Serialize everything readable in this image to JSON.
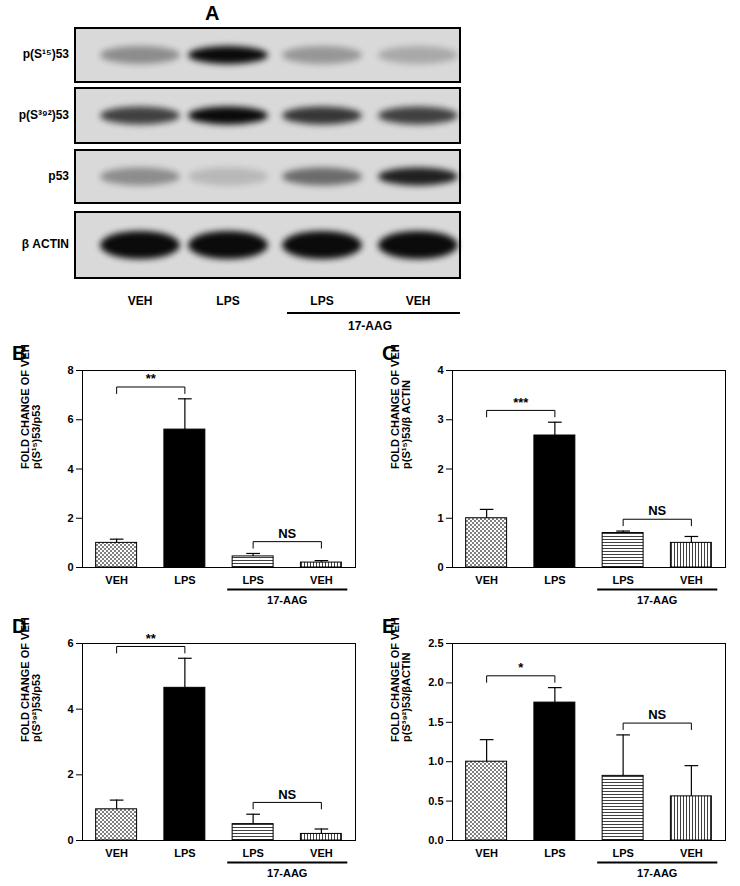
{
  "blot": {
    "title": "A",
    "rows": [
      {
        "label": "p(S¹⁵)53",
        "bands": [
          0.35,
          0.95,
          0.3,
          0.22
        ]
      },
      {
        "label": "p(S³⁹²)53",
        "bands": [
          0.7,
          0.95,
          0.75,
          0.7
        ]
      },
      {
        "label": "p53",
        "bands": [
          0.35,
          0.15,
          0.5,
          0.85
        ]
      },
      {
        "label": "β ACTIN",
        "bands": [
          0.95,
          0.95,
          0.95,
          0.95
        ]
      }
    ],
    "lanes": [
      "VEH",
      "LPS",
      "LPS",
      "VEH"
    ],
    "group": {
      "text": "17-AAG",
      "from": 2,
      "to": 3
    }
  },
  "chart_data": [
    {
      "type": "bar",
      "title": "B",
      "ylabel": "FOLD CHANGE OF VEH\np(S¹⁵)53/p53",
      "categories": [
        "VEH",
        "LPS",
        "LPS",
        "VEH"
      ],
      "values": [
        1.0,
        5.6,
        0.45,
        0.2
      ],
      "errors": [
        0.15,
        1.25,
        0.12,
        0.08
      ],
      "colors": [
        "#808080",
        "#000000",
        "#404040",
        "#404040"
      ],
      "ylim": [
        0,
        8
      ],
      "yticks": [
        0,
        2,
        4,
        6,
        8
      ],
      "annotations": [
        {
          "text": "**",
          "from": 0,
          "to": 1
        },
        {
          "text": "NS",
          "from": 2,
          "to": 3
        }
      ],
      "group": {
        "text": "17-AAG",
        "from": 2,
        "to": 3
      }
    },
    {
      "type": "bar",
      "title": "C",
      "ylabel": "FOLD CHANGE OF VEH\np(S¹⁵)53/β ACTIN",
      "categories": [
        "VEH",
        "LPS",
        "LPS",
        "VEH"
      ],
      "values": [
        1.0,
        2.68,
        0.7,
        0.5
      ],
      "errors": [
        0.18,
        0.27,
        0.04,
        0.13
      ],
      "colors": [
        "#808080",
        "#000000",
        "#404040",
        "#404040"
      ],
      "ylim": [
        0,
        4
      ],
      "yticks": [
        0,
        1,
        2,
        3,
        4
      ],
      "annotations": [
        {
          "text": "***",
          "from": 0,
          "to": 1
        },
        {
          "text": "NS",
          "from": 2,
          "to": 3
        }
      ],
      "group": {
        "text": "17-AAG",
        "from": 2,
        "to": 3
      }
    },
    {
      "type": "bar",
      "title": "D",
      "ylabel": "FOLD CHANGE OF VEH\np(S³⁹²)53/p53",
      "categories": [
        "VEH",
        "LPS",
        "LPS",
        "VEH"
      ],
      "values": [
        0.95,
        4.65,
        0.5,
        0.2
      ],
      "errors": [
        0.28,
        0.9,
        0.3,
        0.15
      ],
      "colors": [
        "#808080",
        "#000000",
        "#404040",
        "#404040"
      ],
      "ylim": [
        0,
        6
      ],
      "yticks": [
        0,
        2,
        4,
        6
      ],
      "annotations": [
        {
          "text": "**",
          "from": 0,
          "to": 1
        },
        {
          "text": "NS",
          "from": 2,
          "to": 3
        }
      ],
      "group": {
        "text": "17-AAG",
        "from": 2,
        "to": 3
      }
    },
    {
      "type": "bar",
      "title": "E",
      "ylabel": "FOLD CHANGE OF VEH\np(S³⁹²)53/βACTIN",
      "categories": [
        "VEH",
        "LPS",
        "LPS",
        "VEH"
      ],
      "values": [
        1.0,
        1.75,
        0.82,
        0.56
      ],
      "errors": [
        0.28,
        0.19,
        0.52,
        0.39
      ],
      "colors": [
        "#808080",
        "#000000",
        "#404040",
        "#404040"
      ],
      "ylim": [
        0,
        2.5
      ],
      "yticks": [
        {
          "value": 0,
          "label": "0.0"
        },
        0.5,
        {
          "value": 1,
          "label": "1.0"
        },
        1.5,
        {
          "value": 2,
          "label": "2.0"
        },
        2.5
      ],
      "annotations": [
        {
          "text": "*",
          "from": 0,
          "to": 1
        },
        {
          "text": "NS",
          "from": 2,
          "to": 3
        }
      ],
      "group": {
        "text": "17-AAG",
        "from": 2,
        "to": 3
      }
    }
  ]
}
